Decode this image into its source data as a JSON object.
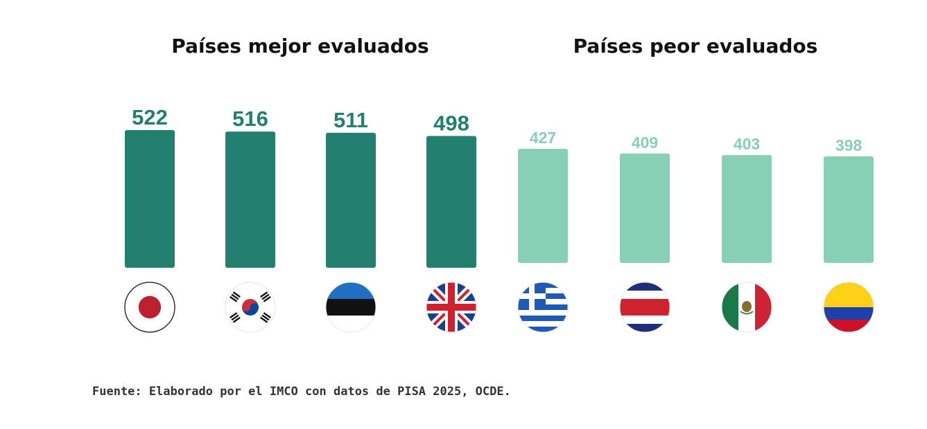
{
  "titles": {
    "best": "Países mejor evaluados",
    "worst": "Países peor evaluados"
  },
  "source": "Fuente: Elaborado por el IMCO con datos de PISA 2025, OCDE.",
  "colors": {
    "best": "#218070",
    "worst": "#88d0b5",
    "title": "#111111"
  },
  "chart_data": {
    "type": "bar",
    "title": "",
    "xlabel": "",
    "ylabel": "",
    "categories": [
      "Japón",
      "Corea del Sur",
      "Estonia",
      "Reino Unido",
      "Grecia",
      "Costa Rica",
      "México",
      "Colombia"
    ],
    "flag_icons": [
      "japan-flag-icon",
      "south-korea-flag-icon",
      "estonia-flag-icon",
      "united-kingdom-flag-icon",
      "greece-flag-icon",
      "costa-rica-flag-icon",
      "mexico-flag-icon",
      "colombia-flag-icon"
    ],
    "values": [
      522,
      516,
      511,
      498,
      427,
      409,
      403,
      398
    ],
    "groups": [
      "best",
      "best",
      "best",
      "best",
      "worst",
      "worst",
      "worst",
      "worst"
    ],
    "ylim": [
      0,
      600
    ],
    "grid": false,
    "legend": "none"
  }
}
